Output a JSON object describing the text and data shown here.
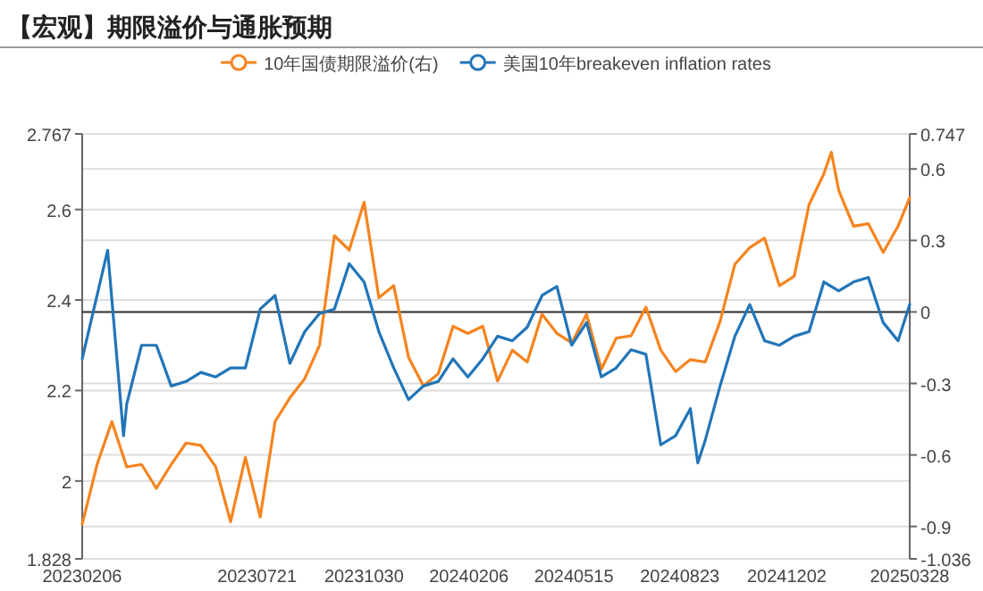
{
  "chart_data": {
    "type": "line",
    "title": "【宏观】期限溢价与通胀预期",
    "xlim": [
      "2023-02-06",
      "2025-03-28"
    ],
    "xticks": [
      {
        "value": "2023-02-06",
        "label": "20230206"
      },
      {
        "value": "2023-07-21",
        "label": "20230721"
      },
      {
        "value": "2023-10-30",
        "label": "20231030"
      },
      {
        "value": "2024-02-06",
        "label": "20240206"
      },
      {
        "value": "2024-05-15",
        "label": "20240515"
      },
      {
        "value": "2024-08-23",
        "label": "20240823"
      },
      {
        "value": "2024-12-02",
        "label": "20241202"
      },
      {
        "value": "2025-03-28",
        "label": "20250328"
      }
    ],
    "ylim": [
      1.828,
      2.767
    ],
    "yticks": [
      1.828,
      2,
      2.2,
      2.4,
      2.6,
      2.767
    ],
    "y2lim": [
      -1.036,
      0.747
    ],
    "y2ticks": [
      -1.036,
      -0.9,
      -0.6,
      -0.3,
      0,
      0.3,
      0.6,
      0.747
    ],
    "grid": "y",
    "legend": "top",
    "marker": "none",
    "line_style": "solid",
    "ref_lines": [
      {
        "axis": "y2",
        "value": 0,
        "color": "#333333"
      }
    ],
    "series": [
      {
        "name": "10年国债期限溢价(右)",
        "color": "#f5841f",
        "axis": "y2",
        "x": [
          "2023-02-06",
          "2023-02-20",
          "2023-03-06",
          "2023-03-20",
          "2023-04-03",
          "2023-04-17",
          "2023-05-01",
          "2023-05-15",
          "2023-05-29",
          "2023-06-12",
          "2023-06-26",
          "2023-07-10",
          "2023-07-24",
          "2023-08-07",
          "2023-08-21",
          "2023-09-04",
          "2023-09-18",
          "2023-10-02",
          "2023-10-16",
          "2023-10-30",
          "2023-11-13",
          "2023-11-27",
          "2023-12-11",
          "2023-12-25",
          "2024-01-08",
          "2024-01-22",
          "2024-02-05",
          "2024-02-19",
          "2024-03-04",
          "2024-03-18",
          "2024-04-01",
          "2024-04-15",
          "2024-04-29",
          "2024-05-13",
          "2024-05-27",
          "2024-06-10",
          "2024-06-24",
          "2024-07-08",
          "2024-07-22",
          "2024-08-05",
          "2024-08-19",
          "2024-09-02",
          "2024-09-16",
          "2024-09-30",
          "2024-10-14",
          "2024-10-28",
          "2024-11-11",
          "2024-11-25",
          "2024-12-09",
          "2024-12-23",
          "2025-01-06",
          "2025-01-13",
          "2025-01-20",
          "2025-02-03",
          "2025-02-17",
          "2025-03-03",
          "2025-03-17",
          "2025-03-28"
        ],
        "values": [
          -0.89,
          -0.64,
          -0.46,
          -0.65,
          -0.64,
          -0.74,
          -0.64,
          -0.55,
          -0.56,
          -0.65,
          -0.88,
          -0.61,
          -0.86,
          -0.46,
          -0.36,
          -0.28,
          -0.14,
          0.32,
          0.26,
          0.46,
          0.06,
          0.11,
          -0.19,
          -0.31,
          -0.26,
          -0.06,
          -0.09,
          -0.06,
          -0.29,
          -0.16,
          -0.21,
          -0.01,
          -0.09,
          -0.13,
          -0.01,
          -0.24,
          -0.11,
          -0.1,
          0.02,
          -0.16,
          -0.25,
          -0.2,
          -0.21,
          -0.04,
          0.2,
          0.27,
          0.31,
          0.11,
          0.15,
          0.45,
          0.58,
          0.67,
          0.51,
          0.36,
          0.37,
          0.25,
          0.36,
          0.48
        ]
      },
      {
        "name": "美国10年breakeven inflation rates",
        "color": "#2275b8",
        "x": [
          "2023-02-06",
          "2023-02-20",
          "2023-03-02",
          "2023-03-17",
          "2023-03-20",
          "2023-04-03",
          "2023-04-17",
          "2023-05-01",
          "2023-05-15",
          "2023-05-29",
          "2023-06-12",
          "2023-06-26",
          "2023-07-10",
          "2023-07-24",
          "2023-08-07",
          "2023-08-21",
          "2023-09-04",
          "2023-09-18",
          "2023-10-02",
          "2023-10-16",
          "2023-10-30",
          "2023-11-13",
          "2023-11-27",
          "2023-12-11",
          "2023-12-25",
          "2024-01-08",
          "2024-01-22",
          "2024-02-05",
          "2024-02-19",
          "2024-03-04",
          "2024-03-18",
          "2024-04-01",
          "2024-04-15",
          "2024-04-29",
          "2024-05-13",
          "2024-05-27",
          "2024-06-10",
          "2024-06-24",
          "2024-07-08",
          "2024-07-22",
          "2024-08-05",
          "2024-08-19",
          "2024-09-02",
          "2024-09-09",
          "2024-09-16",
          "2024-09-30",
          "2024-10-14",
          "2024-10-28",
          "2024-11-11",
          "2024-11-25",
          "2024-12-09",
          "2024-12-23",
          "2025-01-06",
          "2025-01-20",
          "2025-02-03",
          "2025-02-17",
          "2025-03-03",
          "2025-03-17",
          "2025-03-28"
        ],
        "values": [
          2.27,
          2.41,
          2.51,
          2.1,
          2.17,
          2.3,
          2.3,
          2.21,
          2.22,
          2.24,
          2.23,
          2.25,
          2.25,
          2.38,
          2.41,
          2.26,
          2.33,
          2.37,
          2.38,
          2.48,
          2.44,
          2.33,
          2.25,
          2.18,
          2.21,
          2.22,
          2.27,
          2.23,
          2.27,
          2.32,
          2.31,
          2.34,
          2.41,
          2.43,
          2.3,
          2.35,
          2.23,
          2.25,
          2.29,
          2.28,
          2.08,
          2.1,
          2.16,
          2.04,
          2.09,
          2.21,
          2.32,
          2.39,
          2.31,
          2.3,
          2.32,
          2.33,
          2.44,
          2.42,
          2.44,
          2.45,
          2.35,
          2.31,
          2.39
        ]
      }
    ]
  }
}
